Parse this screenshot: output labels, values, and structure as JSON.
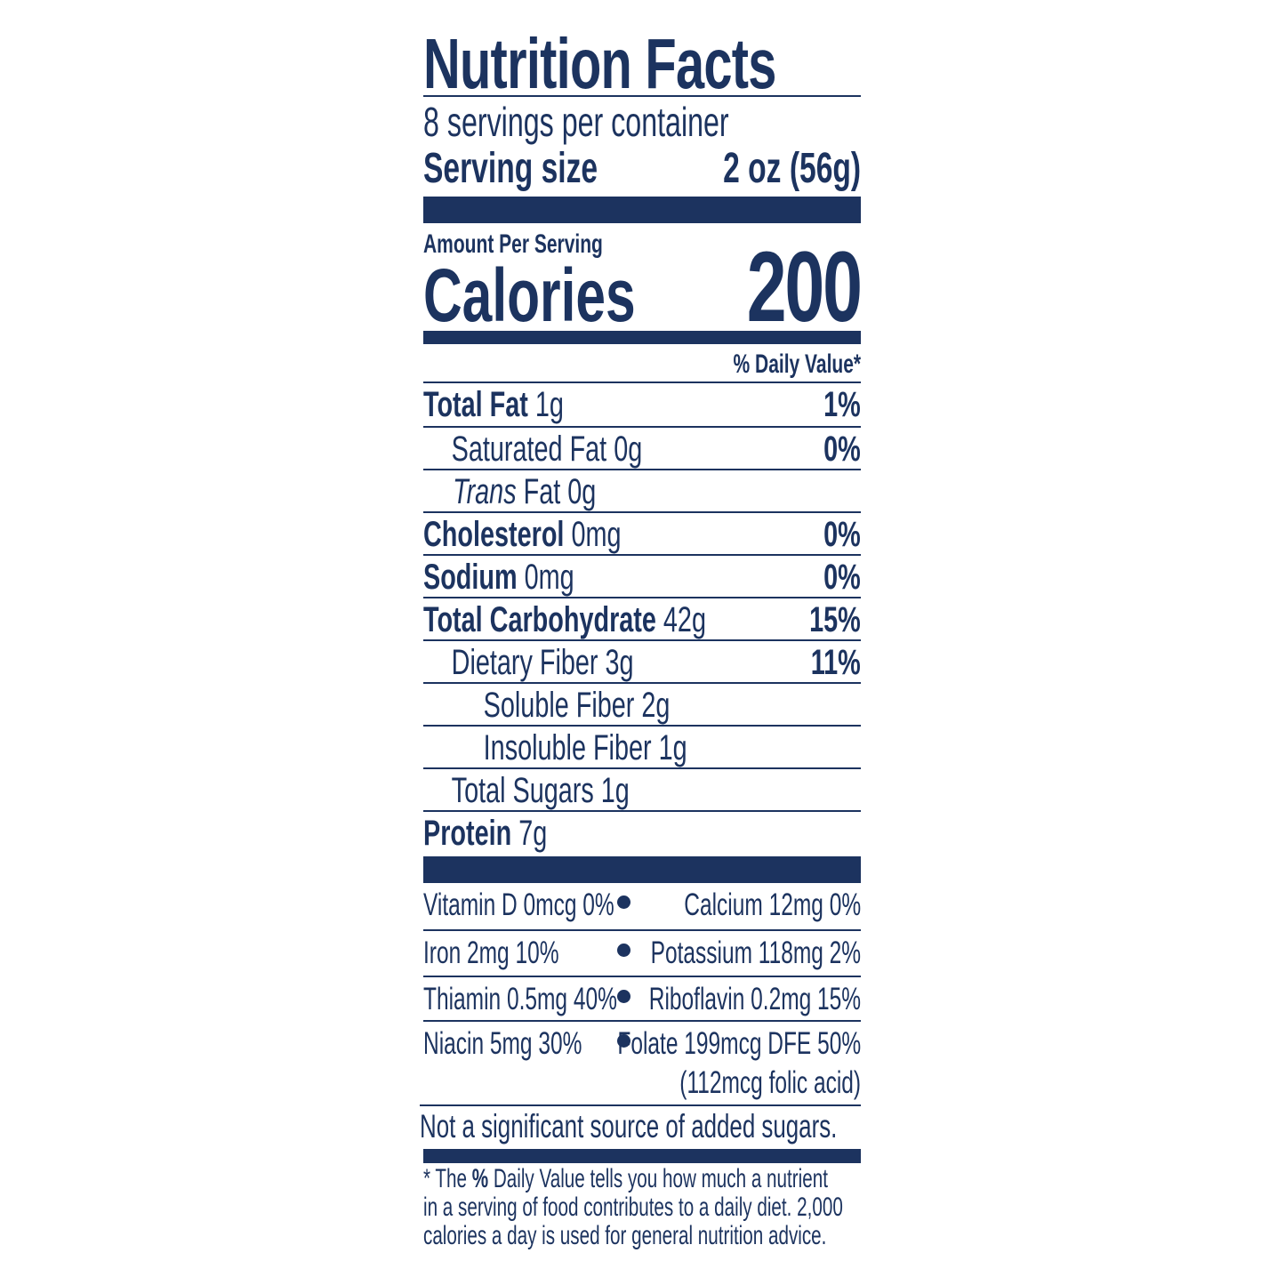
{
  "title": "Nutrition Facts",
  "servings_per_container": "8 servings per container",
  "serving_size_label": "Serving size",
  "serving_size_value": "2 oz (56g)",
  "amount_per_serving": "Amount Per Serving",
  "calories_label": "Calories",
  "calories_value": "200",
  "daily_value_header": "% Daily Value*",
  "nutrients": [
    {
      "name": "Total Fat",
      "amount": "1g",
      "dv": "1%"
    },
    {
      "name": "Saturated Fat",
      "amount": "0g",
      "dv": "0%"
    },
    {
      "name": "Trans",
      "amount": "Fat 0g",
      "dv": ""
    },
    {
      "name": "Cholesterol",
      "amount": "0mg",
      "dv": "0%"
    },
    {
      "name": "Sodium",
      "amount": "0mg",
      "dv": "0%"
    },
    {
      "name": "Total Carbohydrate",
      "amount": "42g",
      "dv": "15%"
    },
    {
      "name": "Dietary Fiber",
      "amount": "3g",
      "dv": "11%"
    },
    {
      "name": "Soluble Fiber",
      "amount": "2g",
      "dv": ""
    },
    {
      "name": "Insoluble Fiber",
      "amount": "1g",
      "dv": ""
    },
    {
      "name": "Total Sugars",
      "amount": "1g",
      "dv": ""
    },
    {
      "name": "Protein",
      "amount": "7g",
      "dv": ""
    }
  ],
  "vitamins": [
    {
      "left": "Vitamin D 0mcg 0%",
      "right": "Calcium 12mg 0%"
    },
    {
      "left": "Iron 2mg 10%",
      "right": "Potassium 118mg 2%"
    },
    {
      "left": "Thiamin 0.5mg 40%",
      "right": "Riboflavin 0.2mg 15%"
    },
    {
      "left": "Niacin 5mg 30%",
      "right": "Folate 199mcg DFE 50%",
      "right2": "(112mcg folic acid)"
    }
  ],
  "added_sugars_note": "Not a significant source of added sugars.",
  "footnote": {
    "star": "* The ",
    "pct": "%",
    "line1_rest": " Daily Value tells you how much a nutrient",
    "line2": "in a serving of food contributes to a daily diet. 2,000",
    "line3": "calories a day is used for general nutrition advice."
  },
  "colors": {
    "ink": "#1c335f",
    "background": "#ffffff"
  }
}
